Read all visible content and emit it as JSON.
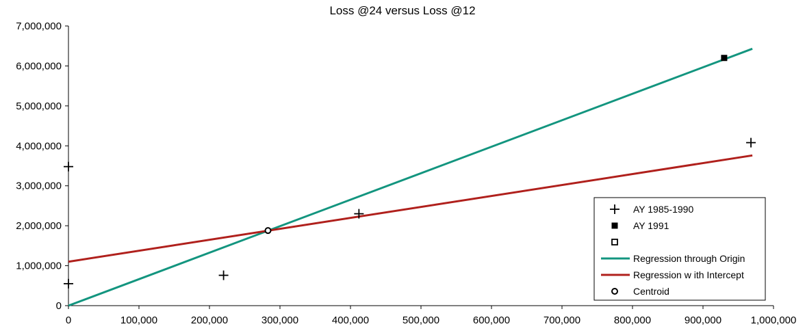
{
  "chart_data": {
    "type": "scatter",
    "title": "Loss @24 versus Loss @12",
    "xlabel": "",
    "ylabel": "",
    "xlim": [
      0,
      1000000
    ],
    "ylim": [
      0,
      7000000
    ],
    "x_ticks": [
      0,
      100000,
      200000,
      300000,
      400000,
      500000,
      600000,
      700000,
      800000,
      900000,
      1000000
    ],
    "x_tick_labels": [
      "0",
      "100,000",
      "200,000",
      "300,000",
      "400,000",
      "500,000",
      "600,000",
      "700,000",
      "800,000",
      "900,000",
      "1,000,000"
    ],
    "y_ticks": [
      0,
      1000000,
      2000000,
      3000000,
      4000000,
      5000000,
      6000000,
      7000000
    ],
    "y_tick_labels": [
      "0",
      "1,000,000",
      "2,000,000",
      "3,000,000",
      "4,000,000",
      "5,000,000",
      "6,000,000",
      "7,000,000"
    ],
    "grid": false,
    "legend_position": "bottom-right",
    "series": [
      {
        "name": "AY 1985-1990",
        "kind": "scatter",
        "marker": "plus",
        "color": "#000000",
        "points": [
          [
            0,
            3480000
          ],
          [
            0,
            550000
          ],
          [
            220000,
            760000
          ],
          [
            412000,
            2300000
          ],
          [
            968000,
            4080000
          ]
        ]
      },
      {
        "name": "AY 1991",
        "kind": "scatter",
        "marker": "filled-square",
        "color": "#000000",
        "points": [
          [
            930000,
            6200000
          ]
        ]
      },
      {
        "name": "",
        "kind": "scatter",
        "marker": "open-square",
        "color": "#000000",
        "points": []
      },
      {
        "name": "Regression through Origin",
        "kind": "line",
        "color": "#13957f",
        "points": [
          [
            0,
            0
          ],
          [
            970000,
            6430000
          ]
        ]
      },
      {
        "name": "Regression w ith Intercept",
        "kind": "line",
        "color": "#b0201c",
        "points": [
          [
            0,
            1100000
          ],
          [
            970000,
            3760000
          ]
        ]
      },
      {
        "name": "Centroid",
        "kind": "scatter",
        "marker": "open-circle",
        "color": "#000000",
        "points": [
          [
            283000,
            1880000
          ]
        ]
      }
    ]
  }
}
